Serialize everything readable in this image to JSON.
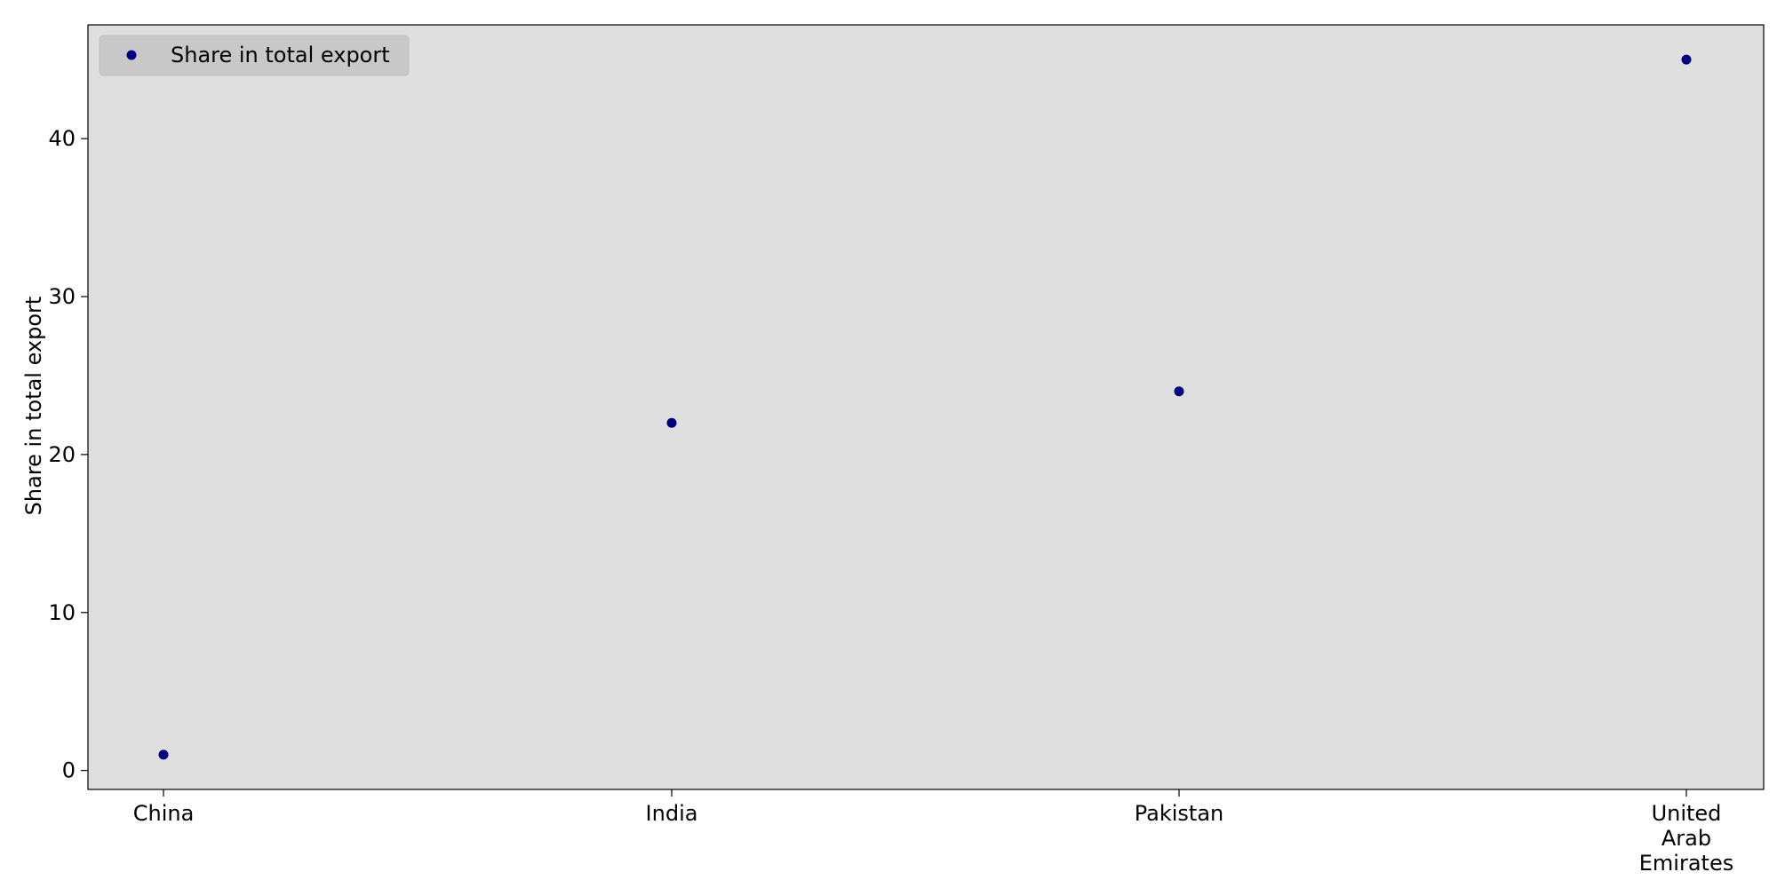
{
  "chart_data": {
    "type": "scatter",
    "categories": [
      "China",
      "India",
      "Pakistan",
      "United Arab Emirates"
    ],
    "category_tick_lines": [
      [
        "China"
      ],
      [
        "India"
      ],
      [
        "Pakistan"
      ],
      [
        "United",
        "Arab",
        "Emirates"
      ]
    ],
    "series": [
      {
        "name": "Share in total export",
        "values": [
          1,
          22,
          24,
          45
        ],
        "color": "#000080"
      }
    ],
    "title": "",
    "xlabel": "",
    "ylabel": "Share in total export",
    "ylim": [
      -1.2,
      47.2
    ],
    "yticks": [
      0,
      10,
      20,
      30,
      40
    ],
    "grid": false,
    "legend_position": "top-left",
    "plot_background": "#dfdfdf",
    "legend_background": "#c8c8c8"
  }
}
